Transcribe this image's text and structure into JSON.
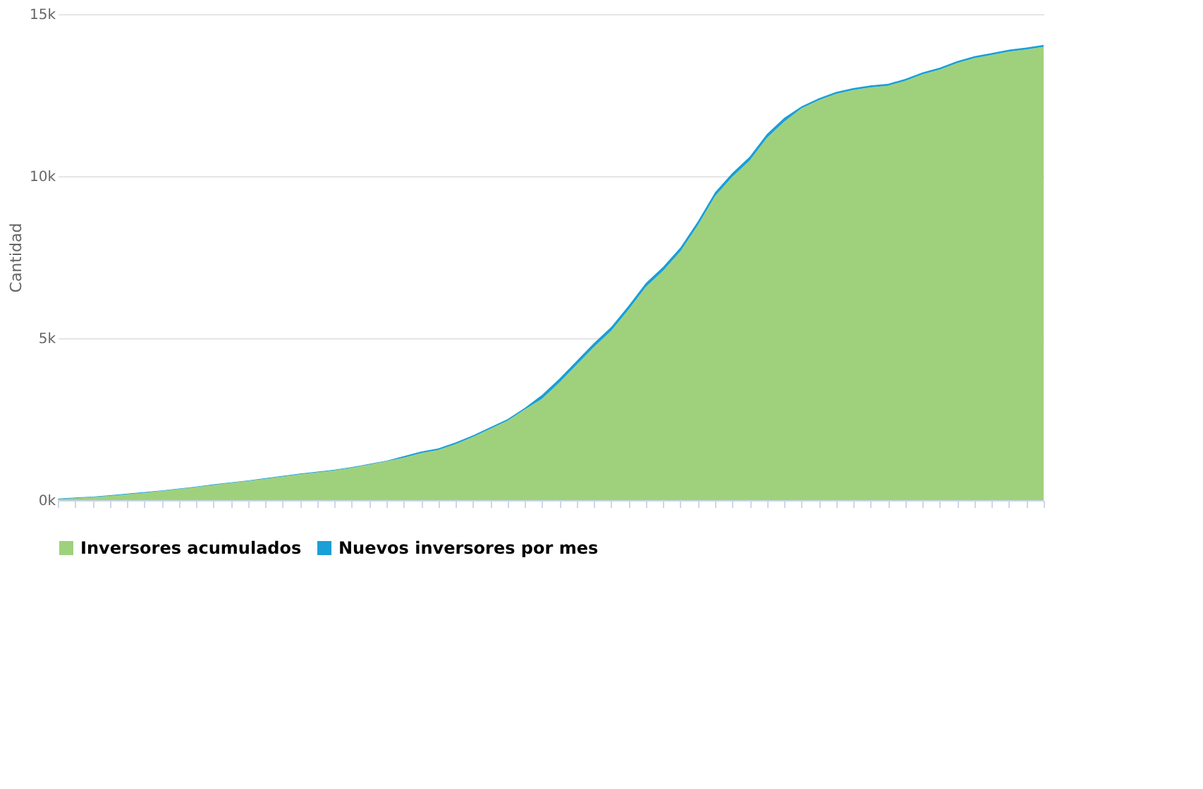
{
  "chart_data": {
    "type": "area",
    "stacked": true,
    "ylabel": "Cantidad",
    "categories": [
      null,
      null,
      null,
      null,
      null,
      null,
      null,
      null,
      null,
      null,
      null,
      null,
      null,
      null,
      null,
      null,
      null,
      null,
      null,
      null,
      null,
      null,
      null,
      null,
      null,
      null,
      null,
      null,
      null,
      null,
      null,
      null,
      null,
      null,
      null,
      null,
      null,
      null,
      null,
      null,
      null,
      null,
      null,
      null,
      null,
      null,
      null,
      null,
      null,
      null,
      null,
      null,
      null,
      null,
      null,
      null,
      null,
      null
    ],
    "series": [
      {
        "name": "Inversores acumulados",
        "color": "#9fd17d",
        "values": [
          30,
          60,
          90,
          130,
          180,
          230,
          280,
          340,
          400,
          470,
          530,
          590,
          660,
          730,
          800,
          860,
          920,
          1000,
          1100,
          1200,
          1310,
          1450,
          1550,
          1730,
          1950,
          2200,
          2450,
          2800,
          3130,
          3630,
          4180,
          4730,
          5230,
          5880,
          6580,
          7080,
          7680,
          8480,
          9380,
          9980,
          10480,
          11180,
          11680,
          12090,
          12340,
          12540,
          12660,
          12740,
          12790,
          12940,
          13140,
          13290,
          13490,
          13640,
          13740,
          13840,
          13910,
          13990
        ]
      },
      {
        "name": "Nuevos inversores por mes",
        "color": "#1a9fd6",
        "values": [
          20,
          20,
          20,
          20,
          20,
          20,
          20,
          20,
          20,
          20,
          20,
          20,
          20,
          20,
          20,
          20,
          20,
          20,
          20,
          20,
          50,
          50,
          50,
          50,
          50,
          50,
          50,
          50,
          120,
          120,
          120,
          120,
          120,
          120,
          120,
          120,
          120,
          120,
          120,
          120,
          120,
          120,
          120,
          60,
          60,
          60,
          60,
          60,
          60,
          60,
          60,
          60,
          60,
          60,
          60,
          60,
          60,
          60
        ]
      }
    ],
    "ylim": [
      0,
      15000
    ],
    "yticks": [
      {
        "value": 0,
        "label": "0k"
      },
      {
        "value": 5000,
        "label": "5k"
      },
      {
        "value": 10000,
        "label": "10k"
      },
      {
        "value": 15000,
        "label": "15k"
      }
    ],
    "grid": "y",
    "legend": "bottom"
  }
}
